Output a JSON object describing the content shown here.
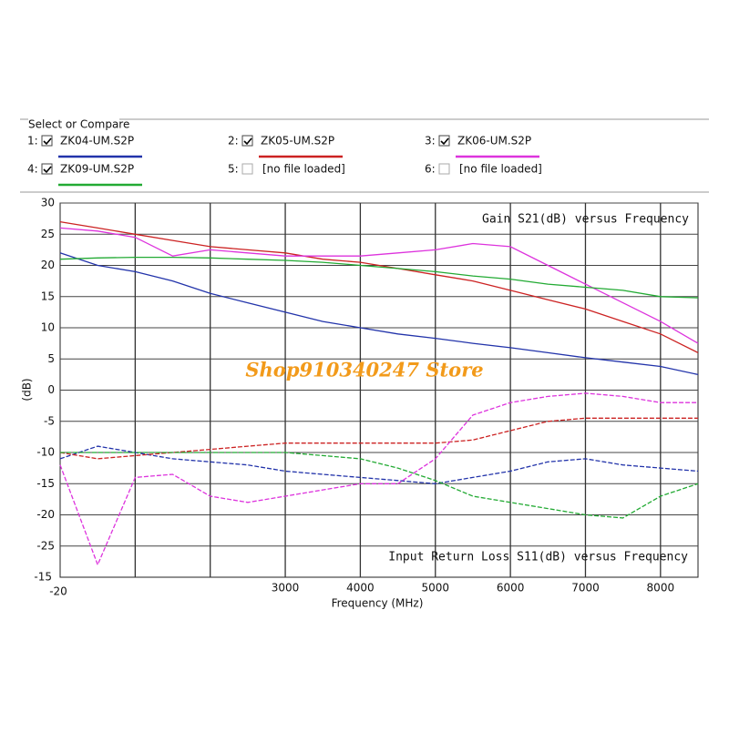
{
  "panel": {
    "title": "Select or Compare",
    "slot_labels": [
      "1:",
      "2:",
      "3:",
      "4:",
      "5:",
      "6:"
    ],
    "empty_slots": [
      "[no file loaded]",
      "[no file loaded]"
    ]
  },
  "chart_data": {
    "type": "line",
    "title": "Gain S21(dB) versus Frequency",
    "subtitle": "Input Return Loss S11(dB) versus Frequency",
    "y_label": "(dB)",
    "x_label": "Frequency (MHz)",
    "watermark": "Shop910340247 Store",
    "corner_labels": [
      "-20",
      "-15"
    ],
    "x": [
      0,
      500,
      1000,
      1500,
      2000,
      2500,
      3000,
      3500,
      4000,
      4500,
      5000,
      5500,
      6000,
      6500,
      7000,
      7500,
      8000,
      8500
    ],
    "xlim": [
      0,
      8500
    ],
    "xticks": [
      {
        "value": 1000,
        "label": null
      },
      {
        "value": 2000,
        "label": null
      },
      3000,
      4000,
      5000,
      6000,
      7000,
      8000
    ],
    "ylim": [
      -30,
      30
    ],
    "yticks": [
      30,
      25,
      20,
      15,
      10,
      5,
      0,
      -5,
      -10,
      -15,
      -20,
      -25
    ],
    "grid": true,
    "series": [
      {
        "name": "ZK04-UM.S2P",
        "checked": true,
        "color": "#2233aa",
        "s21": [
          22,
          20,
          19,
          17.5,
          15.5,
          14,
          12.5,
          11,
          10,
          9,
          8.3,
          7.5,
          6.8,
          6,
          5.2,
          4.5,
          3.8,
          2.5
        ],
        "s11": [
          -11,
          -9,
          -10,
          -11,
          -11.5,
          -12,
          -13,
          -13.5,
          -14,
          -14.5,
          -15,
          -14,
          -13,
          -11.5,
          -11,
          -12,
          -12.5,
          -13
        ]
      },
      {
        "name": "ZK05-UM.S2P",
        "checked": true,
        "color": "#cc2222",
        "s21": [
          27,
          26,
          25,
          24,
          23,
          22.5,
          22,
          21,
          20.5,
          19.5,
          18.5,
          17.5,
          16,
          14.5,
          13,
          11,
          9,
          6
        ],
        "s11": [
          -10,
          -11,
          -10.5,
          -10,
          -9.5,
          -9,
          -8.5,
          -8.5,
          -8.5,
          -8.5,
          -8.5,
          -8,
          -6.5,
          -5,
          -4.5,
          -4.5,
          -4.5,
          -4.5
        ]
      },
      {
        "name": "ZK06-UM.S2P",
        "checked": true,
        "color": "#dd33dd",
        "s21": [
          26,
          25.5,
          24.5,
          21.5,
          22.5,
          22,
          21.5,
          21.5,
          21.5,
          22,
          22.5,
          23.5,
          23,
          20,
          17,
          14,
          11,
          7.5
        ],
        "s11": [
          -12,
          -28,
          -14,
          -13.5,
          -17,
          -18,
          -17,
          -16,
          -15,
          -15,
          -11,
          -4,
          -2,
          -1,
          -0.5,
          -1,
          -2,
          -2
        ]
      },
      {
        "name": "ZK09-UM.S2P",
        "checked": true,
        "color": "#22aa33",
        "s21": [
          21,
          21.2,
          21.3,
          21.3,
          21.2,
          21,
          20.8,
          20.5,
          20,
          19.5,
          19,
          18.3,
          17.8,
          17,
          16.5,
          16,
          15,
          14.8
        ],
        "s11": [
          -10,
          -10,
          -10,
          -10,
          -10,
          -10,
          -10,
          -10.5,
          -11,
          -12.5,
          -14.5,
          -17,
          -18,
          -19,
          -20,
          -20.5,
          -17,
          -15
        ]
      }
    ]
  }
}
